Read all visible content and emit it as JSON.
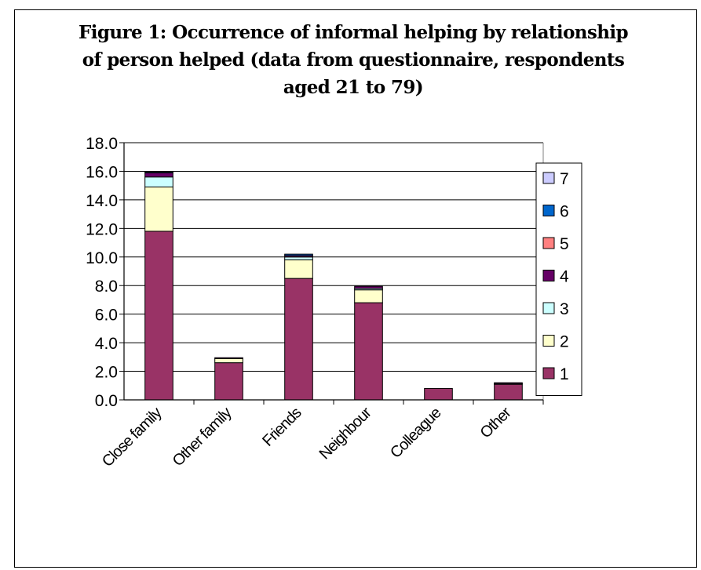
{
  "chart_data": {
    "type": "bar",
    "stacked": true,
    "title": "Figure 1: Occurrence of informal helping by relationship of person helped (data from questionnaire, respondents aged 21 to 79)",
    "title_lines": [
      "Figure 1: Occurrence of informal helping by relationship",
      "of person helped (data from questionnaire, respondents",
      "aged 21 to 79)"
    ],
    "xlabel": "",
    "ylabel": "",
    "ylim": [
      0,
      18
    ],
    "yticks": [
      "0.0",
      "2.0",
      "4.0",
      "6.0",
      "8.0",
      "10.0",
      "12.0",
      "14.0",
      "16.0",
      "18.0"
    ],
    "grid": true,
    "legend_position": "right",
    "categories": [
      "Close family",
      "Other family",
      "Friends",
      "Neighbour",
      "Colleague",
      "Other"
    ],
    "series": [
      {
        "name": "1",
        "color": "#993366",
        "values": [
          11.8,
          2.6,
          8.5,
          6.8,
          0.8,
          1.1
        ]
      },
      {
        "name": "2",
        "color": "#FFFFCC",
        "values": [
          3.1,
          0.3,
          1.3,
          0.9,
          0.0,
          0.0
        ]
      },
      {
        "name": "3",
        "color": "#CCFFFF",
        "values": [
          0.7,
          0.0,
          0.2,
          0.1,
          0.0,
          0.05
        ]
      },
      {
        "name": "4",
        "color": "#660066",
        "values": [
          0.3,
          0.05,
          0.1,
          0.15,
          0.0,
          0.05
        ]
      },
      {
        "name": "5",
        "color": "#FF8080",
        "values": [
          0.0,
          0.0,
          0.0,
          0.0,
          0.0,
          0.0
        ]
      },
      {
        "name": "6",
        "color": "#0066CC",
        "values": [
          0.05,
          0.0,
          0.1,
          0.0,
          0.0,
          0.0
        ]
      },
      {
        "name": "7",
        "color": "#CCCCFF",
        "values": [
          0.0,
          0.0,
          0.0,
          0.0,
          0.0,
          0.0
        ]
      }
    ]
  }
}
